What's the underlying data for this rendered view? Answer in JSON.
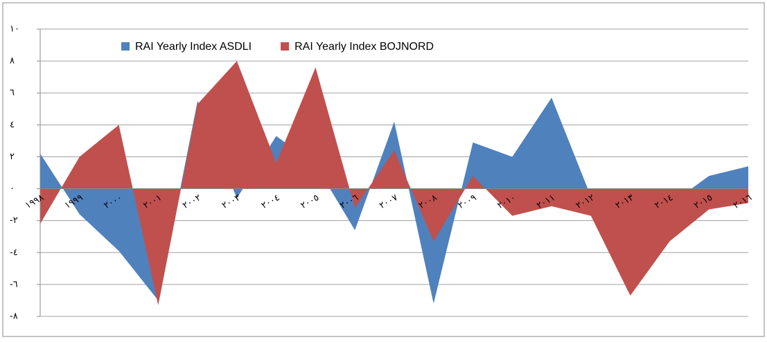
{
  "chart_data": {
    "type": "area",
    "categories": [
      "١٩٩٨",
      "١٩٩٩",
      "٢٠٠٠",
      "٢٠٠١",
      "٢٠٠٢",
      "٢٠٠٣",
      "٢٠٠٤",
      "٢٠٠٥",
      "٢٠٠٦",
      "٢٠٠٧",
      "٢٠٠٨",
      "٢٠٠٩",
      "٢٠١٠",
      "٢٠١١",
      "٢٠١٢",
      "٢٠١٣",
      "٢٠١٤",
      "٢٠١٥",
      "٢٠١٦"
    ],
    "series": [
      {
        "name": "RAI Yearly Index ASDLI",
        "color": "#4f81bd",
        "values": [
          2.2,
          -1.6,
          -3.9,
          -7.0,
          5.5,
          -0.6,
          3.3,
          1.5,
          -2.6,
          4.2,
          -7.2,
          2.9,
          2.0,
          5.7,
          -0.5,
          -2,
          -1,
          0.8,
          1.4
        ]
      },
      {
        "name": "RAI Yearly Index BOJNORD",
        "color": "#c0504d",
        "values": [
          -2.2,
          2.0,
          4.0,
          -7.3,
          5.3,
          8.0,
          1.6,
          7.6,
          -1.2,
          2.4,
          -3.3,
          0.8,
          -1.7,
          -1.1,
          -1.7,
          -6.7,
          -3.3,
          -1.3,
          -0.9
        ]
      }
    ],
    "ylim": [
      -8,
      10
    ],
    "yticks": [
      {
        "value": -8,
        "label": "-٨"
      },
      {
        "value": -6,
        "label": "-٦"
      },
      {
        "value": -4,
        "label": "-٤"
      },
      {
        "value": -2,
        "label": "-٢"
      },
      {
        "value": 0,
        "label": "٠"
      },
      {
        "value": 2,
        "label": "٢"
      },
      {
        "value": 4,
        "label": "٤"
      },
      {
        "value": 6,
        "label": "٦"
      },
      {
        "value": 8,
        "label": "٨"
      },
      {
        "value": 10,
        "label": "١٠"
      }
    ],
    "grid": true,
    "legend": "top"
  }
}
